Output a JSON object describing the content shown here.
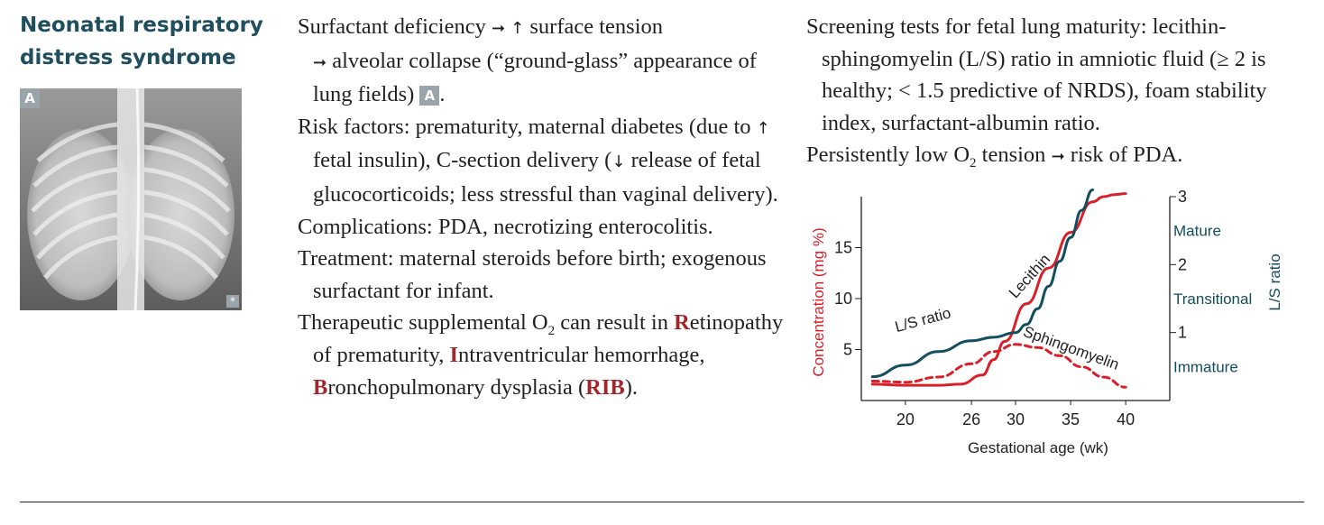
{
  "topic": {
    "title_line1": "Neonatal respiratory",
    "title_line2": "distress syndrome",
    "image_label": "A",
    "image_mark": "*"
  },
  "col2": {
    "p1": {
      "t1": "Surfactant deficiency",
      "t2": "surface tension",
      "t3": "alveolar collapse (“ground-glass” appearance of lung fields)",
      "ref": "A",
      "t4": "."
    },
    "p2": {
      "t1": "Risk factors: prematurity, maternal diabetes (due to",
      "t2": "fetal insulin), C-section delivery (",
      "t3": "release of fetal glucocorticoids; less stressful than vaginal delivery)."
    },
    "p3": "Complications: PDA, necrotizing enterocolitis.",
    "p4": "Treatment: maternal steroids before birth; exogenous surfactant for infant.",
    "p5": {
      "t1": "Therapeutic supplemental O",
      "sub": "2",
      "t2": " can result in ",
      "r1": "R",
      "r1_rest": "etinopathy of prematurity, ",
      "i1": "I",
      "i1_rest": "ntraventricular hemorrhage, ",
      "b1": "B",
      "b1_rest": "ronchopulmonary dysplasia (",
      "rib": "RIB",
      "end": ")."
    }
  },
  "col3": {
    "p1": "Screening tests for fetal lung maturity: lecithin-sphingomyelin (L/S) ratio in amniotic fluid (≥ 2 is healthy; < 1.5 predictive of NRDS), foam stability index, surfactant-albumin ratio.",
    "p2": {
      "t1": "Persistently low O",
      "sub": "2",
      "t2": " tension",
      "t3": "risk of PDA."
    }
  },
  "glyphs": {
    "arrow_right": "➞",
    "arrow_up": "↑",
    "arrow_down": "↓"
  },
  "chart_data": {
    "type": "line",
    "xlabel": "Gestational age (wk)",
    "ylabel_left": "Concentration (mg %)",
    "ylabel_right": "L/S ratio",
    "x_ticks": [
      "20",
      "26",
      "30",
      "35",
      "40"
    ],
    "y_left_ticks": [
      "5",
      "10",
      "15"
    ],
    "y_right_ticks": [
      "1",
      "2",
      "3"
    ],
    "xlim": [
      16,
      44
    ],
    "ylim_left": [
      0,
      20
    ],
    "ylim_right": [
      0,
      3
    ],
    "zones": [
      "Mature",
      "Transitional",
      "Immature"
    ],
    "annotations": [
      "L/S ratio",
      "Lecithin",
      "Sphingomyelin"
    ],
    "colors": {
      "lecithin": "#d9202a",
      "sphingomyelin": "#d9202a",
      "ls_ratio": "#134e5e",
      "axis_left": "#d9202a",
      "axis_right": "#134e5e"
    },
    "series": [
      {
        "name": "Lecithin",
        "axis": "left",
        "style": "solid",
        "x": [
          17,
          20,
          23,
          25,
          27,
          28,
          29,
          31,
          33,
          35,
          37,
          38,
          39,
          40
        ],
        "y": [
          1.6,
          1.5,
          1.5,
          1.6,
          2.5,
          4.0,
          5.8,
          9.5,
          13.0,
          16.5,
          19.5,
          20.0,
          20.2,
          20.3
        ]
      },
      {
        "name": "Sphingomyelin",
        "axis": "left",
        "style": "dashed",
        "x": [
          17,
          20,
          23,
          26,
          28,
          30,
          32,
          34,
          36,
          38,
          40
        ],
        "y": [
          1.9,
          1.8,
          2.3,
          3.6,
          4.8,
          5.5,
          5.2,
          4.4,
          3.3,
          2.3,
          1.3
        ]
      },
      {
        "name": "L/S ratio",
        "axis": "right",
        "style": "solid",
        "x": [
          17,
          20,
          23,
          26,
          28,
          30,
          31,
          32,
          33,
          34,
          35,
          36,
          37
        ],
        "y": [
          0.35,
          0.52,
          0.72,
          0.88,
          0.93,
          1.0,
          1.12,
          1.35,
          1.68,
          2.05,
          2.4,
          2.8,
          3.1
        ]
      }
    ]
  }
}
